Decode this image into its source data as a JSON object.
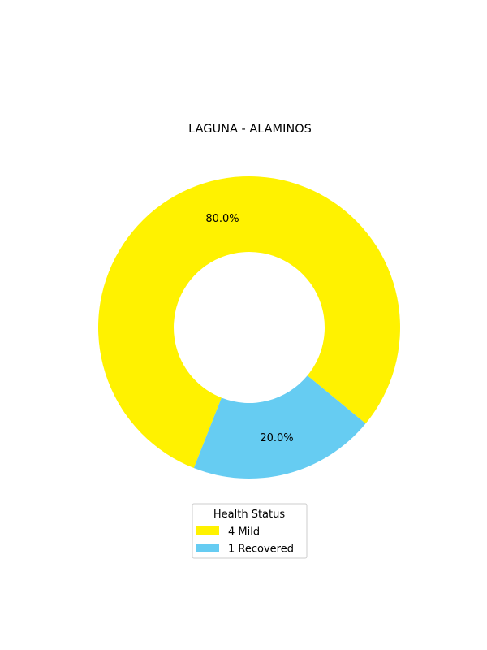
{
  "chart_data": {
    "type": "pie",
    "variant": "donut",
    "title": "LAGUNA - ALAMINOS",
    "labels": [
      "Mild",
      "Recovered"
    ],
    "counts": [
      "4",
      "1"
    ],
    "values": [
      80.0,
      20.0
    ],
    "value_labels": [
      "80.0%",
      "20.0%"
    ],
    "colors": [
      "#FFF200",
      "#66CCF2"
    ],
    "legend": {
      "title": "Health Status",
      "placement": "bottom-center",
      "entries": [
        {
          "count": "4",
          "label": "Mild",
          "color": "#FFF200"
        },
        {
          "count": "1",
          "label": "Recovered",
          "color": "#66CCF2"
        }
      ]
    }
  }
}
